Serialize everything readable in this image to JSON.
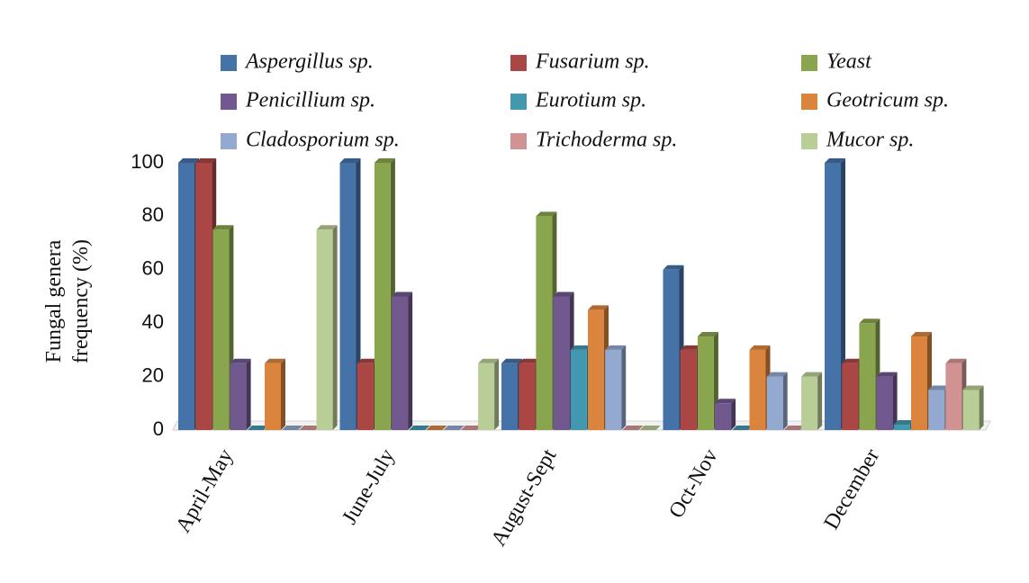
{
  "chart_data": {
    "type": "bar",
    "ylabel": "Fungal genera frequency (%)",
    "categories": [
      "April-May",
      "June-July",
      "August-Sept",
      "Oct-Nov",
      "December"
    ],
    "ylim": [
      0,
      100
    ],
    "yticks": [
      0,
      20,
      40,
      60,
      80,
      100
    ],
    "series": [
      {
        "name": "Aspergillus sp.",
        "color": "#4572a7",
        "values": [
          100,
          100,
          25,
          60,
          100
        ]
      },
      {
        "name": "Fusarium sp.",
        "color": "#aa4643",
        "values": [
          100,
          25,
          25,
          30,
          25
        ]
      },
      {
        "name": "Yeast",
        "color": "#89a54e",
        "values": [
          75,
          100,
          80,
          35,
          40
        ]
      },
      {
        "name": "Penicillium sp.",
        "color": "#71588f",
        "values": [
          25,
          50,
          50,
          10,
          20
        ]
      },
      {
        "name": "Eurotium sp.",
        "color": "#4198af",
        "values": [
          0,
          0,
          30,
          0,
          2
        ]
      },
      {
        "name": "Geotricum sp.",
        "color": "#db843d",
        "values": [
          25,
          0,
          45,
          30,
          35
        ]
      },
      {
        "name": "Cladosporium sp.",
        "color": "#93a9cf",
        "values": [
          0,
          0,
          30,
          20,
          15
        ]
      },
      {
        "name": "Trichoderma sp.",
        "color": "#d19392",
        "values": [
          0,
          0,
          0,
          0,
          25
        ]
      },
      {
        "name": "Mucor sp.",
        "color": "#b9cd96",
        "values": [
          75,
          25,
          0,
          20,
          15
        ]
      }
    ]
  }
}
